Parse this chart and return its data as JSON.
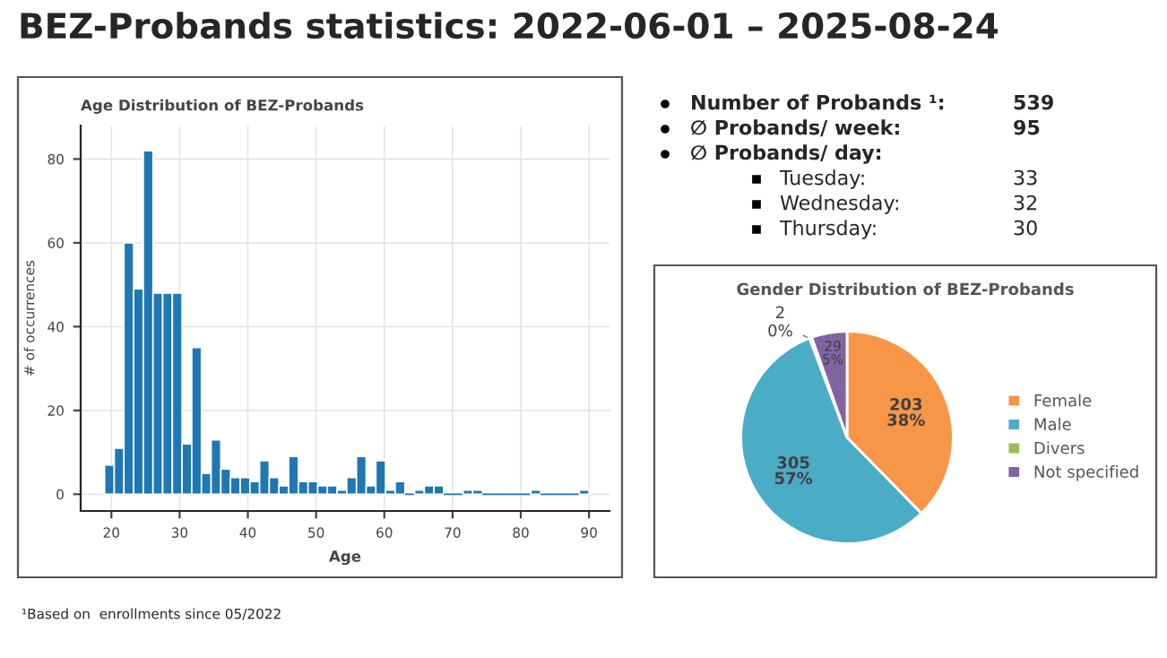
{
  "chart_data": [
    {
      "type": "other",
      "title": "BEZ-Probands statistics: 2022-06-01 – 2025-08-24",
      "annotations": [
        "Number of Probands ¹:",
        "539",
        "∅ Probands/ week:",
        "95",
        "∅ Probands/ day:",
        "Tuesday:",
        "33",
        "Wednesday:",
        "32",
        "Thursday:",
        "30",
        "¹Based on  enrollments since 05/2022"
      ]
    },
    {
      "type": "histogram",
      "title": "Age Distribution of BEZ-Probands",
      "xlabel": "Age",
      "ylabel": "# of occurrences",
      "color": "#1f77b4",
      "bins": [
        19.0,
        20.42,
        21.84,
        23.26,
        24.68,
        26.1,
        27.52,
        28.94,
        30.36,
        31.78,
        33.2,
        34.62,
        36.04,
        37.46,
        38.88,
        40.3,
        41.72,
        43.14,
        44.56,
        45.98,
        47.4,
        48.82,
        50.24,
        51.66,
        53.08,
        54.5,
        55.92,
        57.34,
        58.76,
        60.18,
        61.6,
        63.02,
        64.44,
        65.86,
        67.28,
        68.7,
        70.12,
        71.54,
        72.96,
        74.38,
        75.8,
        77.22,
        78.64,
        80.06,
        81.48,
        82.9,
        84.32,
        85.74,
        87.16,
        88.58,
        90.0
      ],
      "values": [
        7,
        11,
        60,
        49,
        82,
        48,
        48,
        48,
        12,
        35,
        5,
        13,
        6,
        4,
        4,
        3,
        8,
        4,
        2,
        9,
        3,
        3,
        2,
        2,
        1,
        4,
        9,
        2,
        8,
        1,
        3,
        0,
        1,
        2,
        2,
        0,
        0,
        1,
        1,
        0,
        0,
        0,
        0,
        0,
        1,
        0,
        0,
        0,
        0,
        1
      ],
      "xlim": [
        15.5,
        93
      ],
      "xticks": [
        20,
        30,
        40,
        50,
        60,
        70,
        80,
        90
      ],
      "ylim": [
        -4,
        88
      ],
      "yticks": [
        0,
        20,
        40,
        60,
        80
      ],
      "grid": true
    },
    {
      "type": "pie",
      "title": "Gender Distribution of BEZ-Probands",
      "categories": [
        "Female",
        "Male",
        "Divers",
        "Not specified"
      ],
      "values": [
        203,
        305,
        2,
        29
      ],
      "colors": [
        "#f79646",
        "#4bacc6",
        "#9bbb59",
        "#8064a2"
      ],
      "value_labels": [
        "203\n38%",
        "305\n57%",
        "2\n0%",
        "29\n5%"
      ],
      "legend": "right"
    }
  ]
}
